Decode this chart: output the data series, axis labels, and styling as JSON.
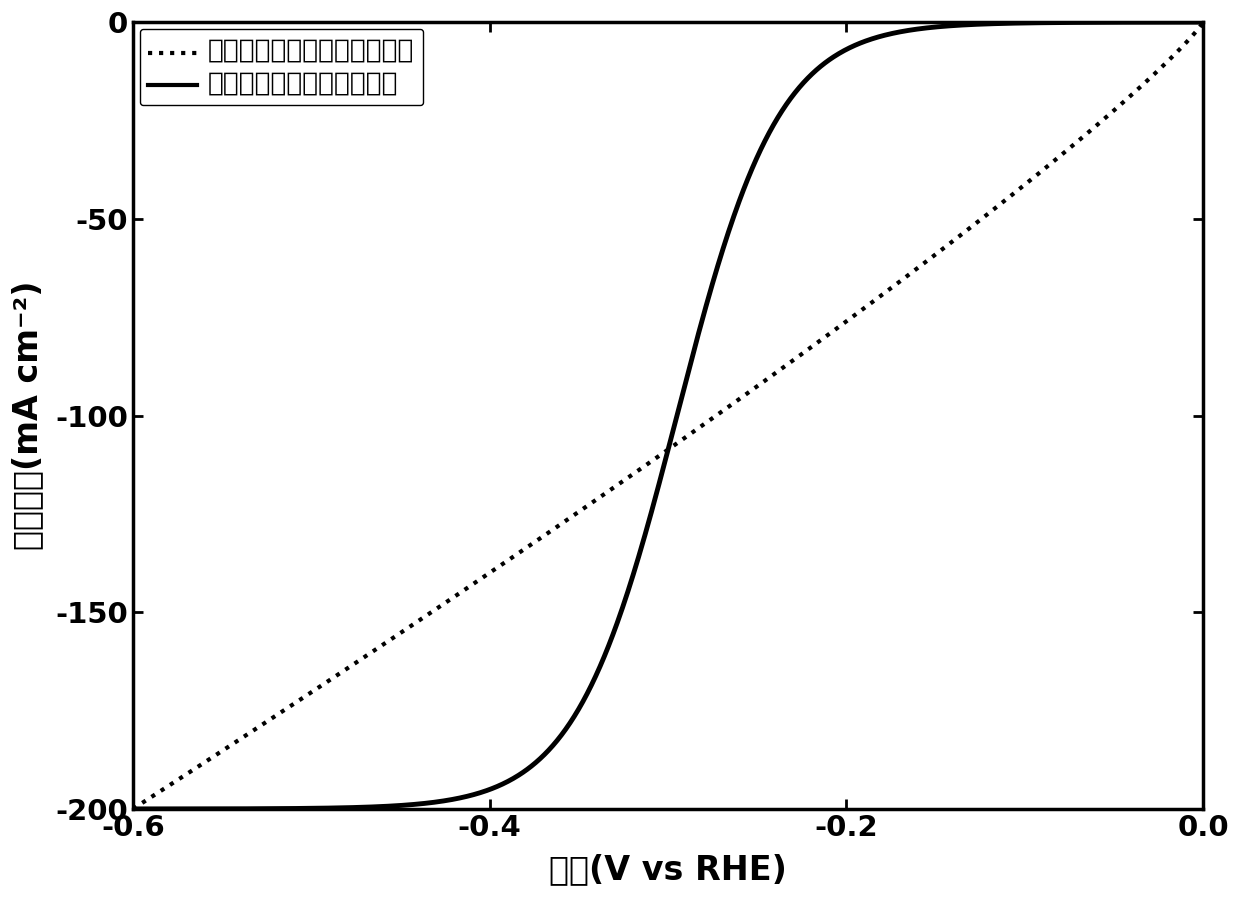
{
  "xlabel": "电势(V vs RHE)",
  "ylabel": "电流密度(mA cm⁻²)",
  "xlim": [
    -0.6,
    0.0
  ],
  "ylim": [
    -200,
    0
  ],
  "xticks": [
    -0.6,
    -0.4,
    -0.2,
    0.0
  ],
  "yticks": [
    0,
    -50,
    -100,
    -150,
    -200
  ],
  "legend1": "无小分子调控制备的复合材料",
  "legend2": "小分子调控制备的复合材料",
  "background_color": "#ffffff",
  "line_color": "#000000",
  "font_size_label": 24,
  "font_size_tick": 21,
  "font_size_legend": 19,
  "linewidth_solid": 3.5,
  "linewidth_dot": 3.0
}
